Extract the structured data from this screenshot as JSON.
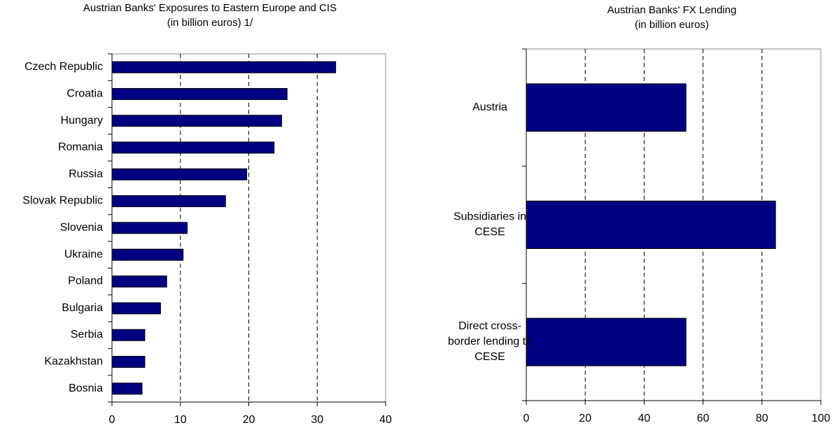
{
  "chart_data": [
    {
      "type": "bar",
      "orientation": "horizontal",
      "title": [
        "Austrian Banks' Exposures to Eastern Europe and CIS",
        "(in billion euros) 1/"
      ],
      "categories": [
        [
          "Czech Republic"
        ],
        [
          "Croatia"
        ],
        [
          "Hungary"
        ],
        [
          "Romania"
        ],
        [
          "Russia"
        ],
        [
          "Slovak Republic"
        ],
        [
          "Slovenia"
        ],
        [
          "Ukraine"
        ],
        [
          "Poland"
        ],
        [
          "Bulgaria"
        ],
        [
          "Serbia"
        ],
        [
          "Kazakhstan"
        ],
        [
          "Bosnia"
        ]
      ],
      "values": [
        32.7,
        25.6,
        24.8,
        23.7,
        19.7,
        16.6,
        11.0,
        10.4,
        8.0,
        7.1,
        4.8,
        4.8,
        4.4
      ],
      "color": "#000080",
      "xlim": [
        0,
        40
      ],
      "xticks": [
        0,
        10,
        20,
        30,
        40
      ],
      "grid": true
    },
    {
      "type": "bar",
      "orientation": "horizontal",
      "title": [
        "Austrian Banks' FX Lending",
        "(in billion euros)"
      ],
      "categories": [
        [
          "Austria"
        ],
        [
          "Subsidiaries in",
          "CESE"
        ],
        [
          "Direct cross-",
          "border lending to",
          "CESE"
        ]
      ],
      "values": [
        54.2,
        84.6,
        54.2
      ],
      "color": "#000080",
      "xlim": [
        0,
        100
      ],
      "xticks": [
        0,
        20,
        40,
        60,
        80,
        100
      ],
      "grid": true
    }
  ]
}
